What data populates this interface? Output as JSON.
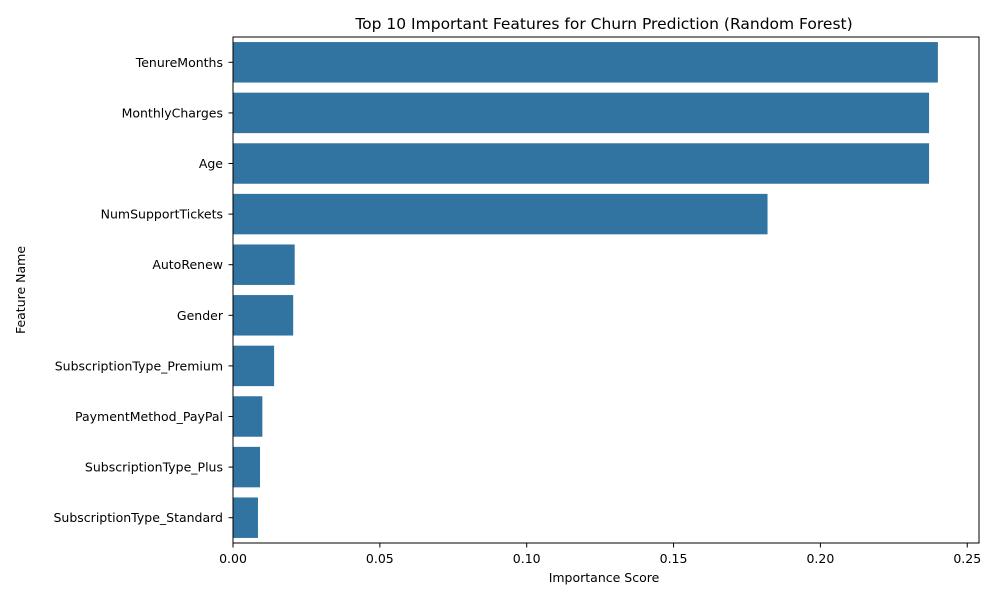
{
  "chart_data": {
    "type": "bar",
    "orientation": "horizontal",
    "title": "Top 10 Important Features for Churn Prediction (Random Forest)",
    "xlabel": "Importance Score",
    "ylabel": "Feature Name",
    "categories": [
      "TenureMonths",
      "MonthlyCharges",
      "Age",
      "NumSupportTickets",
      "AutoRenew",
      "Gender",
      "SubscriptionType_Premium",
      "PaymentMethod_PayPal",
      "SubscriptionType_Plus",
      "SubscriptionType_Standard"
    ],
    "values": [
      0.24,
      0.237,
      0.237,
      0.182,
      0.021,
      0.0205,
      0.014,
      0.01,
      0.0092,
      0.0085
    ],
    "xlim": [
      0,
      0.254
    ],
    "xticks": [
      "0.00",
      "0.05",
      "0.10",
      "0.15",
      "0.20",
      "0.25"
    ],
    "bar_color": "#3274a1",
    "grid": false,
    "legend": "none"
  }
}
